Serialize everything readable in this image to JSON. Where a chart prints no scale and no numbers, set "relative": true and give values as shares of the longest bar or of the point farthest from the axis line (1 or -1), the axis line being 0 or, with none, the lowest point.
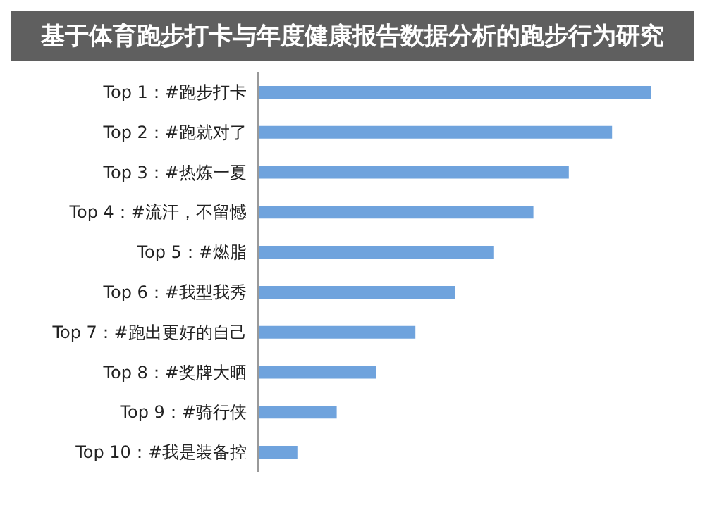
{
  "chart_data": {
    "type": "bar",
    "orientation": "horizontal",
    "relative": true,
    "title": "基于体育跑步打卡与年度健康报告数据分析的跑步行为研究",
    "categories": [
      "Top 1：#跑步打卡",
      "Top 2：#跑就对了",
      "Top 3：#热炼一夏",
      "Top 4：#流汗，不留憾",
      "Top 5：#燃脂",
      "Top 6：#我型我秀",
      "Top 7：#跑出更好的自己",
      "Top 8：#奖牌大晒",
      "Top 9：#骑行侠",
      "Top 10：#我是装备控"
    ],
    "values": [
      1,
      0.9,
      0.79,
      0.7,
      0.6,
      0.5,
      0.4,
      0.3,
      0.2,
      0.1
    ],
    "color": "#6fa3dd",
    "grid": false,
    "legend": false
  }
}
